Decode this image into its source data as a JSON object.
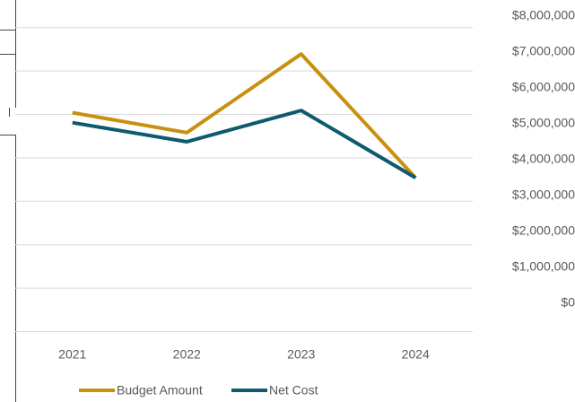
{
  "chart_data": {
    "type": "line",
    "categories": [
      "2021",
      "2022",
      "2023",
      "2024"
    ],
    "series": [
      {
        "name": "Budget Amount",
        "color": "#c8900f",
        "values": [
          5030000,
          4570000,
          6380000,
          3530000
        ]
      },
      {
        "name": "Net Cost",
        "color": "#0e5a6e",
        "values": [
          4800000,
          4360000,
          5080000,
          3530000
        ]
      }
    ],
    "ylim": [
      0,
      8000000
    ],
    "yticks": [
      {
        "value": 0,
        "label": "$0"
      },
      {
        "value": 1000000,
        "label": "$1,000,000"
      },
      {
        "value": 2000000,
        "label": "$2,000,000"
      },
      {
        "value": 3000000,
        "label": "$3,000,000"
      },
      {
        "value": 4000000,
        "label": "$4,000,000"
      },
      {
        "value": 5000000,
        "label": "$5,000,000"
      },
      {
        "value": 6000000,
        "label": "$6,000,000"
      },
      {
        "value": 7000000,
        "label": "$7,000,000"
      },
      {
        "value": 8000000,
        "label": "$8,000,000"
      }
    ],
    "grid": true,
    "legend": "bottom"
  }
}
